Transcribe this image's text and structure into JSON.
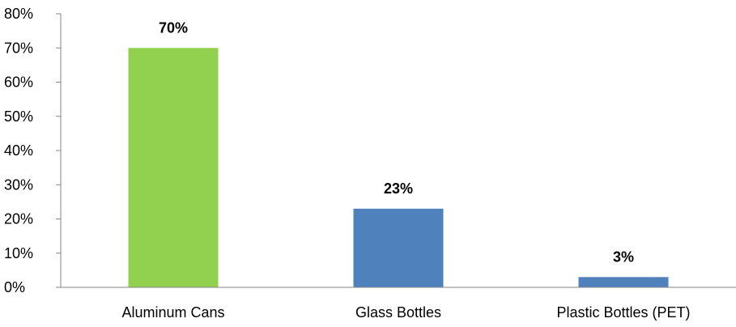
{
  "chart_data": {
    "type": "bar",
    "title": "",
    "xlabel": "",
    "ylabel": "",
    "categories": [
      "Aluminum Cans",
      "Glass Bottles",
      "Plastic Bottles (PET)"
    ],
    "values": [
      70,
      23,
      3
    ],
    "data_labels": [
      "70%",
      "23%",
      "3%"
    ],
    "bar_colors": [
      "#92d050",
      "#4f81bd",
      "#4f81bd"
    ],
    "ylim": [
      0,
      80
    ],
    "y_ticks": [
      0,
      10,
      20,
      30,
      40,
      50,
      60,
      70,
      80
    ],
    "y_tick_labels": [
      "0%",
      "10%",
      "20%",
      "30%",
      "40%",
      "50%",
      "60%",
      "70%",
      "80%"
    ],
    "grid": false,
    "legend": "none"
  }
}
